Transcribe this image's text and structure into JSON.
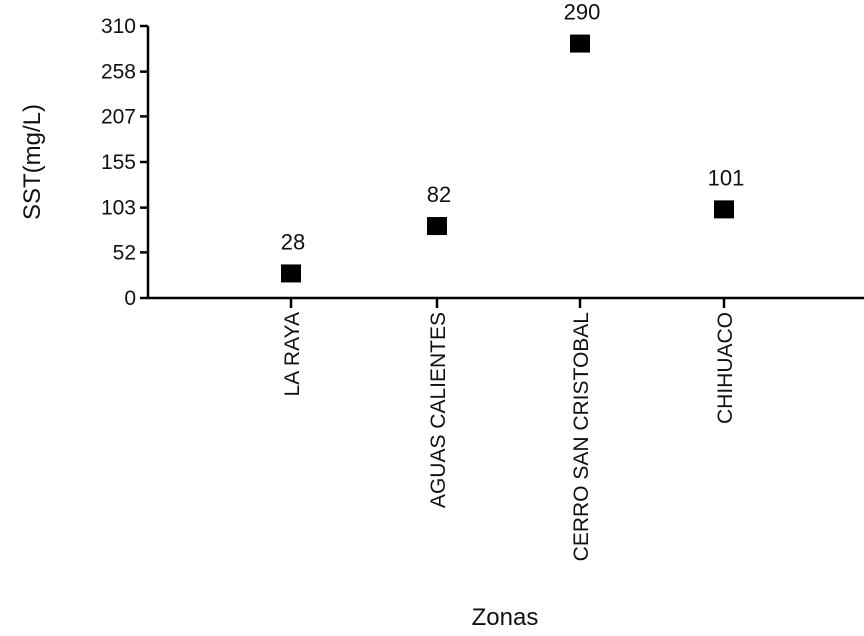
{
  "chart_data": {
    "type": "scatter",
    "categories": [
      "LA RAYA",
      "AGUAS CALIENTES",
      "CERRO SAN CRISTOBAL",
      "CHIHUACO"
    ],
    "values": [
      28,
      82,
      290,
      101
    ],
    "data_labels": [
      "28",
      "82",
      "290",
      "101"
    ],
    "xlabel": "Zonas",
    "ylabel": "SST(mg/L)",
    "ylim": [
      0,
      310
    ],
    "yticks": [
      0,
      52,
      103,
      155,
      207,
      258,
      310
    ],
    "grid": false,
    "legend": "none",
    "marker": "square",
    "marker_color": "#000000"
  }
}
